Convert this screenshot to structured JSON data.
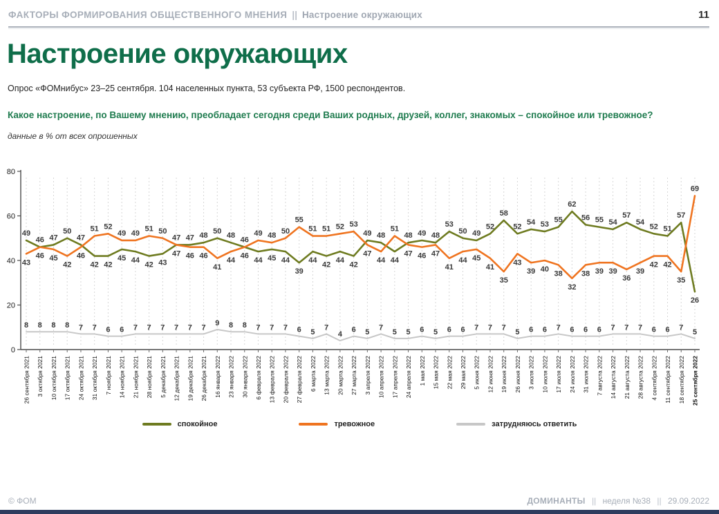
{
  "header": {
    "breadcrumb_main": "ФАКТОРЫ ФОРМИРОВАНИЯ ОБЩЕСТВЕННОГО МНЕНИЯ",
    "breadcrumb_sep": "||",
    "breadcrumb_sub": "Настроение окружающих",
    "page_number": "11"
  },
  "title": "Настроение окружающих",
  "subtitle": "Опрос «ФОМнибус» 23–25 сентября. 104 населенных пункта, 53 субъекта РФ, 1500 респондентов.",
  "question": "Какое настроение, по Вашему мнению, преобладает сегодня среди Ваших родных, друзей, коллег, знакомых – спокойное или тревожное?",
  "units_note": "данные в % от всех опрошенных",
  "chart_data": {
    "type": "line",
    "title": "Настроение окружающих",
    "ylabel": "",
    "xlabel": "",
    "ylim": [
      0,
      80
    ],
    "yticks": [
      0,
      20,
      40,
      60,
      80
    ],
    "grid": "vertical-dashed",
    "legend_position": "bottom",
    "categories": [
      "26 сентября 2021",
      "3 октября 2021",
      "10 октября 2021",
      "17 октября 2021",
      "24 октября 2021",
      "31 октября 2021",
      "7 ноября 2021",
      "14 ноября 2021",
      "21 ноября 2021",
      "28 ноября 2021",
      "5 декабря 2021",
      "12 декабря 2021",
      "19 декабря 2021",
      "26 декабря 2021",
      "16 января 2022",
      "23 января 2022",
      "30 января 2022",
      "6 февраля 2022",
      "13 февраля 2022",
      "20 февраля 2022",
      "27 февраля 2022",
      "6 марта 2022",
      "13 марта 2022",
      "20 марта 2022",
      "27 марта 2022",
      "3 апреля 2022",
      "10 апреля 2022",
      "17 апреля 2022",
      "24 апреля 2022",
      "1 мая 2022",
      "15 мая 2022",
      "22 мая 2022",
      "29 мая 2022",
      "5 июня 2022",
      "12 июня 2022",
      "19 июня 2022",
      "26 июня 2022",
      "3 июля 2022",
      "10 июля 2022",
      "17 июля 2022",
      "24 июля 2022",
      "31 июля 2022",
      "7 августа 2022",
      "14 августа 2022",
      "21 августа 2022",
      "28 августа 2022",
      "4 сентября 2022",
      "11 сентября 2022",
      "18 сентября 2022",
      "25 сентября 2022"
    ],
    "series": [
      {
        "name": "спокойное",
        "color": "#6e7b20",
        "values": [
          49,
          46,
          47,
          50,
          47,
          42,
          42,
          45,
          44,
          42,
          43,
          47,
          47,
          48,
          50,
          48,
          46,
          44,
          45,
          44,
          39,
          44,
          42,
          44,
          42,
          49,
          48,
          44,
          48,
          49,
          48,
          53,
          50,
          49,
          52,
          58,
          52,
          54,
          53,
          55,
          62,
          56,
          55,
          54,
          57,
          54,
          52,
          51,
          57,
          26
        ]
      },
      {
        "name": "тревожное",
        "color": "#ef7420",
        "values": [
          43,
          46,
          45,
          42,
          46,
          51,
          52,
          49,
          49,
          51,
          50,
          47,
          46,
          46,
          41,
          44,
          46,
          49,
          48,
          50,
          55,
          51,
          51,
          52,
          53,
          47,
          44,
          51,
          47,
          46,
          47,
          41,
          44,
          45,
          41,
          35,
          43,
          39,
          40,
          38,
          32,
          38,
          39,
          39,
          36,
          39,
          42,
          42,
          35,
          69
        ]
      },
      {
        "name": "затрудняюсь ответить",
        "color": "#c7c7c7",
        "values": [
          8,
          8,
          8,
          8,
          7,
          7,
          6,
          6,
          7,
          7,
          7,
          7,
          7,
          7,
          9,
          8,
          8,
          7,
          7,
          7,
          6,
          5,
          7,
          4,
          6,
          5,
          7,
          5,
          5,
          6,
          5,
          6,
          6,
          7,
          7,
          7,
          5,
          6,
          6,
          7,
          6,
          6,
          6,
          7,
          7,
          7,
          6,
          6,
          7,
          5
        ]
      }
    ]
  },
  "footer": {
    "left": "© ФОМ",
    "right_brand": "ДОМИНАНТЫ",
    "right_sep": "||",
    "right_week": "неделя №38",
    "right_date": "29.09.2022"
  }
}
